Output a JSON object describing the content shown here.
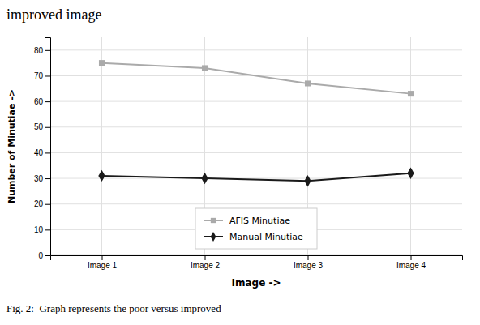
{
  "chart_data": {
    "type": "line",
    "title": "improved image",
    "caption": "Fig. 2:  Graph represents the poor versus improved",
    "x_label": "Image ->",
    "y_label": "Number of Minutiae ->",
    "categories": [
      "Image 1",
      "Image 2",
      "Image 3",
      "Image 4"
    ],
    "series": [
      {
        "name": "AFIS Minutiae",
        "color": "#aaaaaa",
        "marker": "square",
        "values": [
          75,
          73,
          67,
          63
        ]
      },
      {
        "name": "Manual Minutiae",
        "color": "#1a1a1a",
        "marker": "diamond",
        "values": [
          31,
          30,
          29,
          32
        ]
      }
    ],
    "ylim": [
      0,
      85
    ],
    "yticks": [
      0,
      10,
      20,
      30,
      40,
      50,
      60,
      70,
      80
    ],
    "grid": true,
    "legend": "lower center"
  }
}
